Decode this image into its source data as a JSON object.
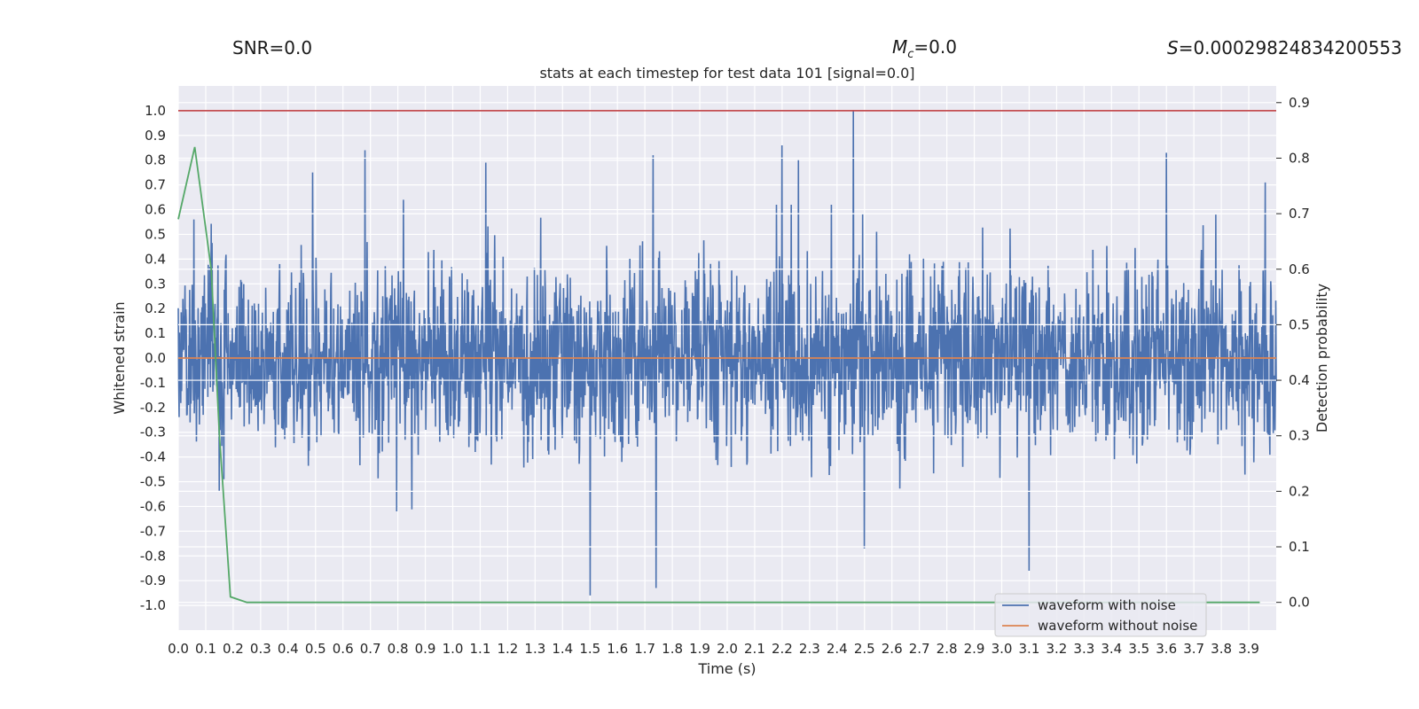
{
  "header": {
    "snr_label": "SNR=0.0",
    "mc_symbol": "M",
    "mc_sub": "c",
    "mc_value": "=0.0",
    "s_symbol": "S",
    "s_value": "=0.00029824834200553"
  },
  "chart_data": {
    "type": "line",
    "title": "stats at each timestep for test data 101 [signal=0.0]",
    "xlabel": "Time (s)",
    "ylabel": "Whitened strain",
    "y2label": "Detection probability",
    "xlim": [
      0.0,
      4.0
    ],
    "ylim": [
      -1.1,
      1.1
    ],
    "y2lim": [
      -0.05,
      0.93
    ],
    "xticks": [
      "0.0",
      "0.1",
      "0.2",
      "0.3",
      "0.4",
      "0.5",
      "0.6",
      "0.7",
      "0.8",
      "0.9",
      "1.0",
      "1.1",
      "1.2",
      "1.3",
      "1.4",
      "1.5",
      "1.6",
      "1.7",
      "1.8",
      "1.9",
      "2.0",
      "2.1",
      "2.2",
      "2.3",
      "2.4",
      "2.5",
      "2.6",
      "2.7",
      "2.8",
      "2.9",
      "3.0",
      "3.1",
      "3.2",
      "3.3",
      "3.4",
      "3.5",
      "3.6",
      "3.7",
      "3.8",
      "3.9"
    ],
    "yticks": [
      "1.0",
      "0.9",
      "0.8",
      "0.7",
      "0.6",
      "0.5",
      "0.4",
      "0.3",
      "0.2",
      "0.1",
      "0.0",
      "-0.1",
      "-0.2",
      "-0.3",
      "-0.4",
      "-0.5",
      "-0.6",
      "-0.7",
      "-0.8",
      "-0.9",
      "-1.0"
    ],
    "y2ticks": [
      "0.9",
      "0.8",
      "0.7",
      "0.6",
      "0.5",
      "0.4",
      "0.3",
      "0.2",
      "0.1",
      "0.0"
    ],
    "grid": true,
    "legend_position": "bottom-right",
    "series": [
      {
        "name": "waveform with noise",
        "color": "#4c72b0",
        "axis": "left",
        "kind": "noise-envelope",
        "x_range": [
          0.0,
          4.0
        ],
        "typical_abs": 0.33,
        "peaks": [
          [
            0.37,
            0.38
          ],
          [
            0.49,
            0.75
          ],
          [
            0.68,
            0.84
          ],
          [
            0.82,
            0.64
          ],
          [
            1.12,
            0.79
          ],
          [
            1.5,
            -0.96
          ],
          [
            1.73,
            0.82
          ],
          [
            1.74,
            -0.93
          ],
          [
            2.2,
            0.86
          ],
          [
            2.26,
            0.8
          ],
          [
            2.46,
            1.0
          ],
          [
            2.5,
            -0.77
          ],
          [
            3.1,
            -0.86
          ],
          [
            3.6,
            0.83
          ],
          [
            3.78,
            0.58
          ],
          [
            3.96,
            0.71
          ]
        ]
      },
      {
        "name": "waveform without noise",
        "color": "#dd8452",
        "axis": "left",
        "x": [
          0.0,
          4.0
        ],
        "y": [
          0.0,
          0.0
        ]
      },
      {
        "color": "#55a868",
        "axis": "right",
        "x": [
          0.0,
          0.06,
          0.12,
          0.15,
          0.19,
          0.25,
          0.3,
          1.0,
          2.0,
          3.0,
          3.94
        ],
        "y": [
          0.69,
          0.82,
          0.6,
          0.3,
          0.01,
          0.0,
          0.0,
          0.0,
          0.0,
          0.0,
          0.0
        ]
      },
      {
        "color": "#c44e52",
        "axis": "left",
        "x": [
          0.0,
          4.0
        ],
        "y": [
          1.0,
          1.0
        ]
      }
    ]
  }
}
